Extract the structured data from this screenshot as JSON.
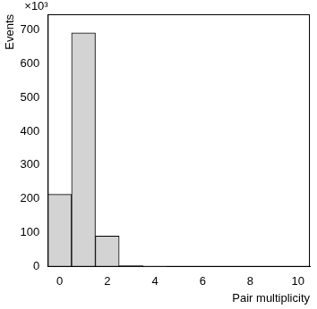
{
  "chart_data": {
    "type": "histogram",
    "x_label": "Pair multiplicity",
    "y_label": "Events",
    "annotation": "×10³",
    "bins": [
      -0.5,
      0.5,
      1.5,
      2.5,
      3.5,
      4.5,
      5.5,
      6.5,
      7.5,
      8.5,
      9.5,
      10.5
    ],
    "values": [
      214,
      690,
      91,
      3,
      1,
      0,
      0,
      0,
      0,
      0,
      0
    ],
    "color": "#d3d3d3",
    "xlim": [
      -0.5,
      10.5
    ],
    "xticks": [
      0,
      2,
      4,
      6,
      8,
      10
    ],
    "ylim": [
      0,
      745
    ],
    "yticks": [
      0,
      100,
      200,
      300,
      400,
      500,
      600,
      700
    ],
    "grid": false
  }
}
